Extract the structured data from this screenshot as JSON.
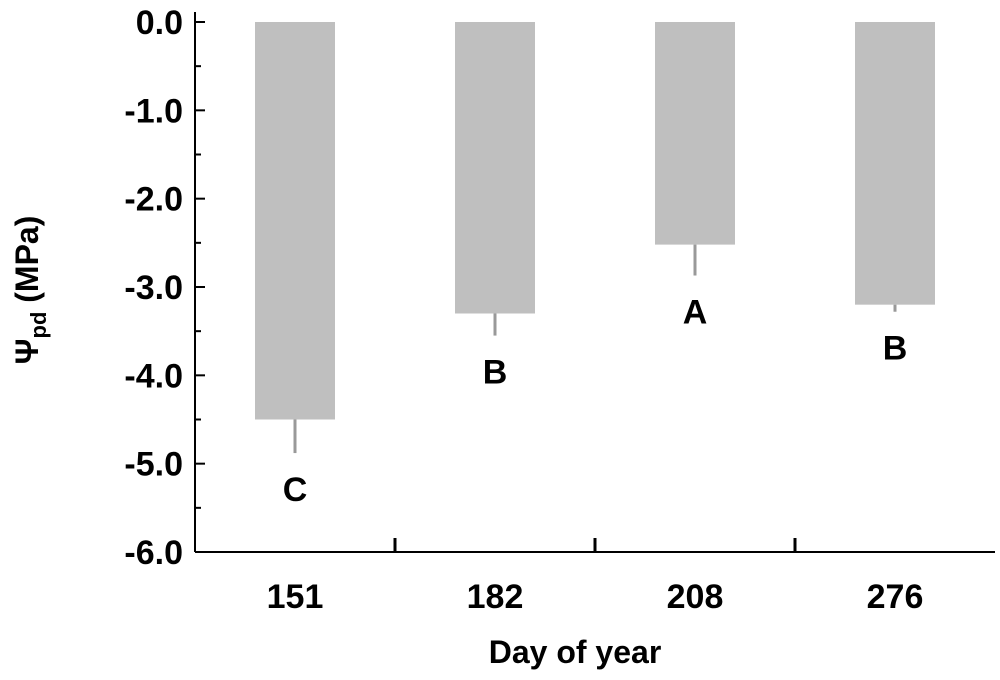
{
  "chart_data": {
    "type": "bar",
    "categories": [
      "151",
      "182",
      "208",
      "276"
    ],
    "values": [
      -4.5,
      -3.3,
      -2.52,
      -3.2
    ],
    "error": [
      0.38,
      0.25,
      0.35,
      0.08
    ],
    "significance_labels": [
      "C",
      "B",
      "A",
      "B"
    ],
    "xlabel": "Day of year",
    "ylabel": {
      "symbol": "Ψ",
      "subscript": "pd",
      "unit": " (MPa)"
    },
    "ylim": [
      -6.0,
      0.0
    ],
    "yticks": [
      "0.0",
      "-1.0",
      "-2.0",
      "-3.0",
      "-4.0",
      "-5.0",
      "-6.0"
    ],
    "colors": {
      "bar": "#bfbfbf",
      "error_bar": "#999999",
      "axis": "#000000"
    },
    "grid": false,
    "legend": "none"
  }
}
